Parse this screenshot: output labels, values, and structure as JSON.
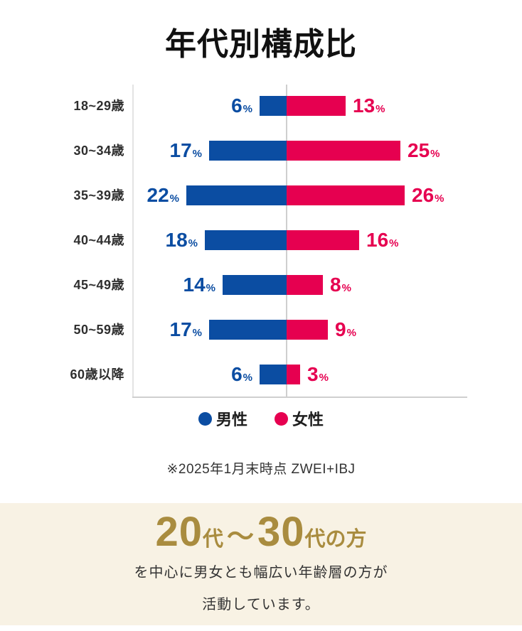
{
  "page": {
    "title": "年代別構成比",
    "footnote": "※2025年1月末時点 ZWEI+IBJ"
  },
  "chart_data": {
    "type": "bar",
    "variant": "diverging-horizontal",
    "title": "年代別構成比",
    "categories": [
      "18~29歳",
      "30~34歳",
      "35~39歳",
      "40~44歳",
      "45~49歳",
      "50~59歳",
      "60歳以降"
    ],
    "series": [
      {
        "name": "男性",
        "color": "#0B4DA2",
        "values": [
          6,
          17,
          22,
          18,
          14,
          17,
          6
        ]
      },
      {
        "name": "女性",
        "color": "#E60050",
        "values": [
          13,
          25,
          26,
          16,
          8,
          9,
          3
        ]
      }
    ],
    "unit": "%",
    "value_labels": true,
    "legend_position": "bottom",
    "grid": "center-axis-only"
  },
  "legend": {
    "items": [
      {
        "label": "男性",
        "color": "#0B4DA2"
      },
      {
        "label": "女性",
        "color": "#E60050"
      }
    ]
  },
  "banner": {
    "background": "#F8F2E4",
    "headline_color": "#A98C3F",
    "headline_parts": [
      {
        "text": "20",
        "style": "num"
      },
      {
        "text": "代",
        "style": "small"
      },
      {
        "text": "〜",
        "style": "tilde"
      },
      {
        "text": "30",
        "style": "num"
      },
      {
        "text": "代の方",
        "style": "small"
      }
    ],
    "line1": "を中心に男女とも幅広い年齢層の方が",
    "line2": "活動しています。"
  }
}
